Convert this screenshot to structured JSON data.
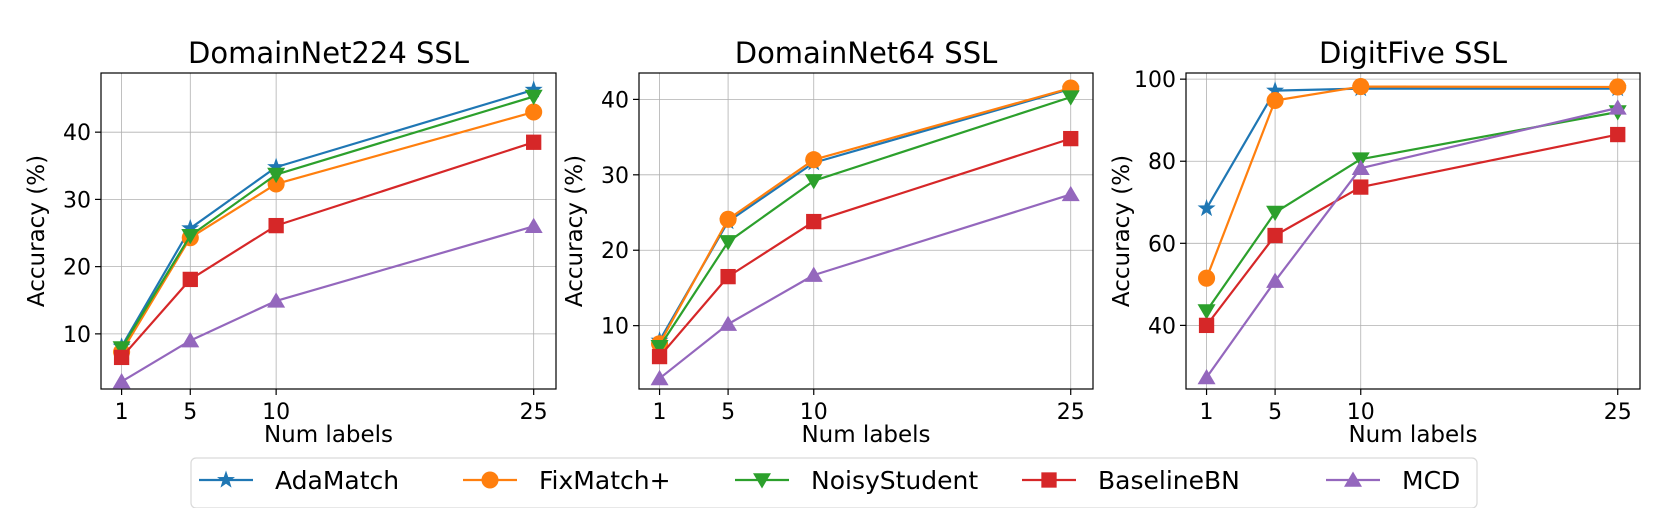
{
  "chart_data": [
    {
      "type": "line",
      "title": "DomainNet224 SSL",
      "xlabel": "Num labels",
      "ylabel": "Accuracy (%)",
      "x": [
        1,
        5,
        10,
        25
      ],
      "xticks": [
        1,
        5,
        10,
        25
      ],
      "yticks": [
        10,
        20,
        30,
        40
      ],
      "xlim": [
        -0.2,
        26.3
      ],
      "ylim": [
        1.8,
        48.8
      ],
      "grid": true,
      "series": [
        {
          "name": "AdaMatch",
          "values": [
            8.1,
            25.7,
            34.8,
            46.3
          ]
        },
        {
          "name": "FixMatch+",
          "values": [
            7.3,
            24.3,
            32.3,
            43.0
          ]
        },
        {
          "name": "NoisyStudent",
          "values": [
            7.9,
            24.6,
            33.7,
            45.3
          ]
        },
        {
          "name": "BaselineBN",
          "values": [
            6.5,
            18.1,
            26.1,
            38.5
          ]
        },
        {
          "name": "MCD",
          "values": [
            2.9,
            9.0,
            14.9,
            26.0
          ]
        }
      ]
    },
    {
      "type": "line",
      "title": "DomainNet64 SSL",
      "xlabel": "Num labels",
      "ylabel": "Accuracy (%)",
      "x": [
        1,
        5,
        10,
        25
      ],
      "xticks": [
        1,
        5,
        10,
        25
      ],
      "yticks": [
        10,
        20,
        30,
        40
      ],
      "xlim": [
        -0.2,
        26.3
      ],
      "ylim": [
        1.6,
        43.5
      ],
      "grid": true,
      "series": [
        {
          "name": "AdaMatch",
          "values": [
            8.0,
            23.8,
            31.6,
            41.4
          ]
        },
        {
          "name": "FixMatch+",
          "values": [
            7.6,
            24.1,
            32.0,
            41.5
          ]
        },
        {
          "name": "NoisyStudent",
          "values": [
            7.2,
            21.1,
            29.2,
            40.3
          ]
        },
        {
          "name": "BaselineBN",
          "values": [
            5.9,
            16.5,
            23.8,
            34.8
          ]
        },
        {
          "name": "MCD",
          "values": [
            3.0,
            10.2,
            16.7,
            27.4
          ]
        }
      ]
    },
    {
      "type": "line",
      "title": "DigitFive SSL",
      "xlabel": "Num labels",
      "ylabel": "Accuracy (%)",
      "x": [
        1,
        5,
        10,
        25
      ],
      "xticks": [
        1,
        5,
        10,
        25
      ],
      "yticks": [
        40,
        60,
        80,
        100
      ],
      "xlim": [
        -0.2,
        26.3
      ],
      "ylim": [
        24.5,
        101.5
      ],
      "grid": true,
      "series": [
        {
          "name": "AdaMatch",
          "values": [
            68.5,
            97.2,
            97.7,
            97.7
          ]
        },
        {
          "name": "FixMatch+",
          "values": [
            51.5,
            94.8,
            98.2,
            98.1
          ]
        },
        {
          "name": "NoisyStudent",
          "values": [
            43.5,
            67.5,
            80.5,
            92.0
          ]
        },
        {
          "name": "BaselineBN",
          "values": [
            40.0,
            61.9,
            73.7,
            86.5
          ]
        },
        {
          "name": "MCD",
          "values": [
            27.3,
            50.8,
            78.3,
            93.0
          ]
        }
      ]
    }
  ],
  "legend": {
    "position": "bottom",
    "items": [
      {
        "name": "AdaMatch",
        "color": "#1f77b4",
        "marker": "star"
      },
      {
        "name": "FixMatch+",
        "color": "#ff7f0e",
        "marker": "circle"
      },
      {
        "name": "NoisyStudent",
        "color": "#2ca02c",
        "marker": "triangle-down"
      },
      {
        "name": "BaselineBN",
        "color": "#d62728",
        "marker": "square"
      },
      {
        "name": "MCD",
        "color": "#9467bd",
        "marker": "triangle-up"
      }
    ]
  }
}
